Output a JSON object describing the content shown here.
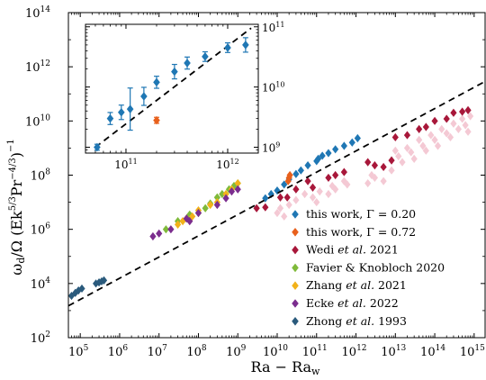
{
  "chart_data": {
    "type": "scatter",
    "title": "",
    "xlabel": "Ra − Ra",
    "xlabel_sub": "w",
    "ylabel": "ω",
    "ylabel_sub": "d",
    "ylabel_rest": "/Ω (Ek",
    "ylabel_exp1": "5/3",
    "ylabel_pr": "Pr",
    "ylabel_exp2": "−4/3",
    "ylabel_close": ")",
    "ylabel_exp3": "−1",
    "x_scale": "log",
    "y_scale": "log",
    "xlim": [
      50000,
      2000000000000000
    ],
    "ylim": [
      100,
      100000000000000
    ],
    "x_ticks": [
      {
        "value": 100000,
        "label": "10",
        "exp": "5"
      },
      {
        "value": 1000000,
        "label": "10",
        "exp": "6"
      },
      {
        "value": 10000000,
        "label": "10",
        "exp": "7"
      },
      {
        "value": 100000000,
        "label": "10",
        "exp": "8"
      },
      {
        "value": 1000000000,
        "label": "10",
        "exp": "9"
      },
      {
        "value": 10000000000,
        "label": "10",
        "exp": "10"
      },
      {
        "value": 100000000000,
        "label": "10",
        "exp": "11"
      },
      {
        "value": 1000000000000,
        "label": "10",
        "exp": "12"
      },
      {
        "value": 10000000000000,
        "label": "10",
        "exp": "13"
      },
      {
        "value": 100000000000000,
        "label": "10",
        "exp": "14"
      },
      {
        "value": 1000000000000000,
        "label": "10",
        "exp": "15"
      }
    ],
    "y_ticks": [
      {
        "value": 100,
        "label": "10",
        "exp": "2"
      },
      {
        "value": 10000,
        "label": "10",
        "exp": "4"
      },
      {
        "value": 1000000,
        "label": "10",
        "exp": "6"
      },
      {
        "value": 100000000,
        "label": "10",
        "exp": "8"
      },
      {
        "value": 10000000000,
        "label": "10",
        "exp": "10"
      },
      {
        "value": 1000000000000,
        "label": "10",
        "exp": "12"
      },
      {
        "value": 100000000000000,
        "label": "10",
        "exp": "14"
      }
    ],
    "grid": false,
    "legend_position": "bottom-right",
    "fit_line": {
      "style": "dashed",
      "color": "#000000",
      "points": [
        [
          50000,
          1500
        ],
        [
          2000000000000000,
          300000000000
        ]
      ]
    },
    "series": [
      {
        "name": "this work, Γ = 0.20",
        "color": "#1f77b4",
        "points": [
          [
            5000000000,
            14000000
          ],
          [
            7000000000,
            20000000
          ],
          [
            10000000000,
            27000000
          ],
          [
            15000000000,
            45000000
          ],
          [
            20000000000,
            70000000
          ],
          [
            30000000000,
            110000000
          ],
          [
            40000000000,
            150000000
          ],
          [
            60000000000,
            230000000
          ],
          [
            100000000000,
            330000000
          ],
          [
            110000000000,
            400000000
          ],
          [
            140000000000,
            520000000
          ],
          [
            200000000000,
            650000000
          ],
          [
            300000000000,
            900000000
          ],
          [
            500000000000,
            1200000000
          ],
          [
            800000000000,
            1600000000
          ],
          [
            1100000000000,
            2300000000
          ]
        ]
      },
      {
        "name": "this work, Γ = 0.72",
        "color": "#e8601c",
        "points": [
          [
            19000000000,
            60000000
          ],
          [
            20000000000,
            80000000
          ],
          [
            21000000000,
            100000000
          ]
        ]
      },
      {
        "name": "Wedi et al. 2021",
        "color": "#a8173a",
        "points": [
          [
            3000000000,
            6000000
          ],
          [
            5000000000,
            6500000
          ],
          [
            12000000000,
            15000000
          ],
          [
            18000000000,
            15000000
          ],
          [
            30000000000,
            30000000
          ],
          [
            60000000000,
            60000000
          ],
          [
            80000000000,
            35000000
          ],
          [
            200000000000,
            80000000
          ],
          [
            300000000000,
            100000000
          ],
          [
            500000000000,
            130000000
          ],
          [
            2000000000000,
            300000000
          ],
          [
            3000000000000,
            230000000
          ],
          [
            5000000000000,
            200000000
          ],
          [
            8000000000000,
            350000000
          ],
          [
            10000000000000,
            2500000000
          ],
          [
            20000000000000,
            3000000000
          ],
          [
            40000000000000,
            5000000000
          ],
          [
            60000000000000,
            6000000000
          ],
          [
            100000000000000,
            10000000000
          ],
          [
            200000000000000,
            12000000000
          ],
          [
            300000000000000,
            20000000000
          ],
          [
            500000000000000,
            22000000000
          ],
          [
            700000000000000,
            25000000000
          ]
        ]
      },
      {
        "name": "Favier & Knobloch 2020",
        "color": "#7fba3a",
        "points": [
          [
            15000000,
            1000000
          ],
          [
            30000000,
            2000000
          ],
          [
            60000000,
            3500000
          ],
          [
            100000000,
            4000000
          ],
          [
            150000000,
            6000000
          ],
          [
            200000000,
            9000000
          ],
          [
            300000000,
            15000000
          ],
          [
            400000000,
            20000000
          ],
          [
            600000000,
            30000000
          ],
          [
            800000000,
            40000000
          ],
          [
            1000000000,
            50000000
          ]
        ]
      },
      {
        "name": "Zhang et al. 2021",
        "color": "#f2b21a",
        "points": [
          [
            30000000,
            1500000
          ],
          [
            40000000,
            2000000
          ],
          [
            50000000,
            2500000
          ],
          [
            70000000,
            3000000
          ],
          [
            100000000,
            5000000
          ],
          [
            200000000,
            8000000
          ],
          [
            300000000,
            10000000
          ],
          [
            500000000,
            20000000
          ],
          [
            700000000,
            30000000
          ],
          [
            1000000000,
            50000000
          ]
        ]
      },
      {
        "name": "Ecke et al. 2022",
        "color": "#7b2d8e",
        "points": [
          [
            7000000,
            550000
          ],
          [
            10000000,
            700000
          ],
          [
            20000000,
            1000000
          ],
          [
            50000000,
            2500000
          ],
          [
            60000000,
            2000000
          ],
          [
            100000000,
            4000000
          ],
          [
            300000000,
            8000000
          ],
          [
            500000000,
            14000000
          ],
          [
            700000000,
            25000000
          ],
          [
            1000000000,
            30000000
          ]
        ]
      },
      {
        "name": "Zhong et al. 1993",
        "color": "#2a5a7c",
        "points": [
          [
            60000,
            3500
          ],
          [
            75000,
            4500
          ],
          [
            90000,
            5500
          ],
          [
            110000,
            6500
          ],
          [
            250000,
            10000
          ],
          [
            300000,
            11000
          ],
          [
            350000,
            12000
          ],
          [
            400000,
            13000
          ]
        ]
      },
      {
        "name": "",
        "color": "#f4c9d4",
        "points": [
          [
            10000000000,
            4000000
          ],
          [
            12000000000,
            6000000
          ],
          [
            15000000000,
            3000000
          ],
          [
            20000000000,
            8000000
          ],
          [
            30000000000,
            12000000
          ],
          [
            50000000000,
            20000000
          ],
          [
            80000000000,
            15000000
          ],
          [
            100000000000,
            10000000
          ],
          [
            120000000000,
            25000000
          ],
          [
            200000000000,
            20000000
          ],
          [
            250000000000,
            40000000
          ],
          [
            300000000000,
            30000000
          ],
          [
            500000000000,
            60000000
          ],
          [
            600000000000,
            45000000
          ],
          [
            2000000000000,
            50000000
          ],
          [
            2500000000000,
            100000000
          ],
          [
            3000000000000,
            80000000
          ],
          [
            5000000000000,
            60000000
          ],
          [
            8000000000000,
            150000000
          ],
          [
            10000000000000,
            800000000
          ],
          [
            12000000000000,
            500000000
          ],
          [
            15000000000000,
            300000000
          ],
          [
            20000000000000,
            1000000000
          ],
          [
            25000000000000,
            700000000
          ],
          [
            30000000000000,
            400000000
          ],
          [
            40000000000000,
            2000000000
          ],
          [
            50000000000000,
            1200000000
          ],
          [
            60000000000000,
            800000000
          ],
          [
            80000000000000,
            3000000000
          ],
          [
            100000000000000,
            2000000000
          ],
          [
            120000000000000,
            1200000000
          ],
          [
            150000000000000,
            5000000000
          ],
          [
            200000000000000,
            3500000000
          ],
          [
            250000000000000,
            2500000000
          ],
          [
            300000000000000,
            8000000000
          ],
          [
            400000000000000,
            5000000000
          ],
          [
            500000000000000,
            12000000000
          ],
          [
            600000000000000,
            7000000000
          ],
          [
            700000000000000,
            4000000000
          ],
          [
            800000000000000,
            15000000000
          ]
        ]
      }
    ],
    "inset": {
      "xlim": [
        40000000000,
        2000000000000
      ],
      "ylim": [
        800000000,
        110000000000
      ],
      "x_ticks": [
        {
          "value": 100000000000,
          "label": "10",
          "exp": "11"
        },
        {
          "value": 1000000000000,
          "label": "10",
          "exp": "12"
        }
      ],
      "y_ticks": [
        {
          "value": 1000000000,
          "label": "10",
          "exp": "9"
        },
        {
          "value": 10000000000,
          "label": "10",
          "exp": "10"
        },
        {
          "value": 100000000000,
          "label": "10",
          "exp": "11"
        }
      ],
      "fit_line": {
        "points": [
          [
            50000000000,
            1000000000
          ],
          [
            1700000000000,
            95000000000
          ]
        ]
      },
      "series": [
        {
          "color": "#1f77b4",
          "points": [
            {
              "x": 52000000000,
              "y": 1000000000,
              "err": 0.05
            },
            {
              "x": 70000000000,
              "y": 3000000000,
              "err": 0.1
            },
            {
              "x": 90000000000,
              "y": 3800000000,
              "err": 0.12
            },
            {
              "x": 110000000000,
              "y": 4300000000,
              "err": 0.35
            },
            {
              "x": 150000000000,
              "y": 7000000000,
              "err": 0.15
            },
            {
              "x": 200000000000,
              "y": 12000000000,
              "err": 0.1
            },
            {
              "x": 300000000000,
              "y": 18000000000,
              "err": 0.12
            },
            {
              "x": 400000000000,
              "y": 25000000000,
              "err": 0.1
            },
            {
              "x": 600000000000,
              "y": 32000000000,
              "err": 0.08
            },
            {
              "x": 1000000000000,
              "y": 45000000000,
              "err": 0.08
            },
            {
              "x": 1500000000000,
              "y": 50000000000,
              "err": 0.12
            }
          ]
        },
        {
          "color": "#e8601c",
          "points": [
            {
              "x": 200000000000,
              "y": 2800000000,
              "err": 0.05
            }
          ]
        }
      ]
    }
  }
}
